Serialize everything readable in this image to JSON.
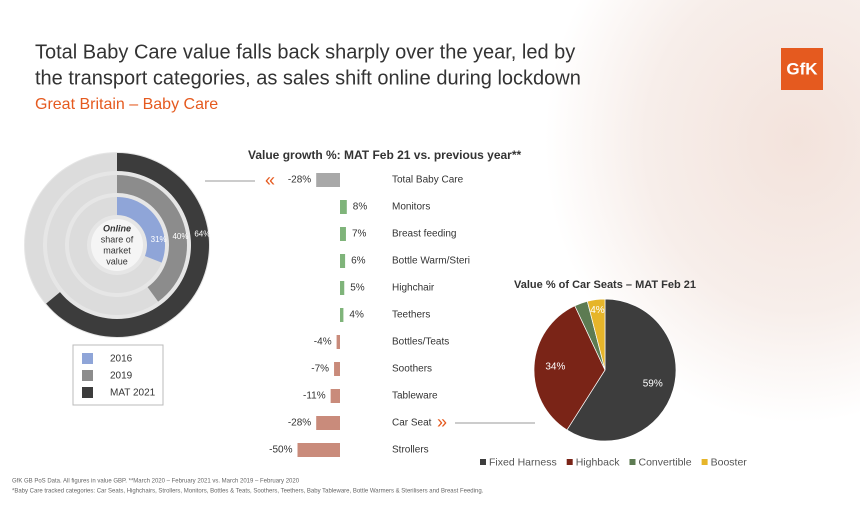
{
  "header": {
    "title_lines": [
      "Total Baby Care value falls back sharply over the year, led by",
      "the transport categories, as sales shift online during lockdown"
    ],
    "subtitle": "Great Britain – Baby Care",
    "logo": "GfK"
  },
  "footnotes": [
    "GfK GB PoS Data. All figures in value GBP. **March 2020 – February 2021 vs. March 2019 – February 2020",
    "*Baby Care tracked categories: Car Seats, Highchairs, Strollers, Monitors, Bottles & Teats, Soothers, Teethers, Baby Tableware, Bottle Warmers & Sterilisers and Breast Feeding."
  ],
  "chart_data": [
    {
      "type": "donut",
      "center_label": [
        "Online",
        "share of",
        "market",
        "value"
      ],
      "series": [
        {
          "name": "2016",
          "color": "#8fa5d8",
          "values": [
            31
          ],
          "value_labels": [
            "31%"
          ]
        },
        {
          "name": "2019",
          "color": "#8c8c8c",
          "values": [
            40
          ],
          "value_labels": [
            "40%"
          ]
        },
        {
          "name": "MAT 2021",
          "color": "#3c3c3c",
          "values": [
            64
          ],
          "value_labels": [
            "64%"
          ]
        }
      ]
    },
    {
      "type": "hbar",
      "title": "Value growth %: MAT Feb 21 vs. previous year**",
      "categories": [
        "Total Baby Care",
        "Monitors",
        "Breast feeding",
        "Bottle Warm/Steri",
        "Highchair",
        "Teethers",
        "Bottles/Teats",
        "Soothers",
        "Tableware",
        "Car Seat",
        "Strollers"
      ],
      "values": [
        -28,
        8,
        7,
        6,
        5,
        4,
        -4,
        -7,
        -11,
        -28,
        -50
      ],
      "value_labels": [
        "-28%",
        "8%",
        "7%",
        "6%",
        "5%",
        "4%",
        "-4%",
        "-7%",
        "-11%",
        "-28%",
        "-50%"
      ],
      "colors": [
        "#a8a8a8",
        "#7fb47a",
        "#7fb47a",
        "#7fb47a",
        "#7fb47a",
        "#7fb47a",
        "#c98b7b",
        "#c98b7b",
        "#c98b7b",
        "#c98b7b",
        "#c98b7b"
      ]
    },
    {
      "type": "pie",
      "title": "Value % of Car Seats – MAT Feb 21",
      "categories": [
        "Fixed Harness",
        "Highback",
        "Convertible",
        "Booster"
      ],
      "values": [
        59,
        34,
        3,
        4
      ],
      "value_labels": [
        "59%",
        "34%",
        null,
        "4%"
      ],
      "colors": [
        "#3d3d3d",
        "#7a2417",
        "#5d7b52",
        "#e6b52a"
      ]
    }
  ]
}
